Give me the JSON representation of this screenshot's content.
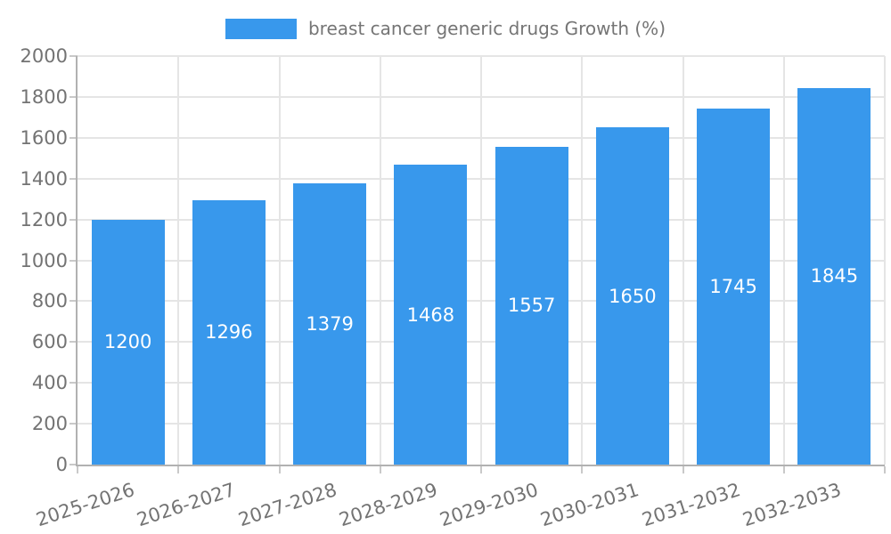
{
  "chart_data": {
    "type": "bar",
    "title": "breast cancer generic drugs Growth (%)",
    "legend": {
      "label": "breast cancer generic drugs Growth (%)",
      "position": "top"
    },
    "categories": [
      "2025-2026",
      "2026-2027",
      "2027-2028",
      "2028-2029",
      "2029-2030",
      "2030-2031",
      "2031-2032",
      "2032-2033"
    ],
    "values": [
      1200,
      1296,
      1379,
      1468,
      1557,
      1650,
      1745,
      1845
    ],
    "value_labels": [
      "1200",
      "1296",
      "1379",
      "1468",
      "1557",
      "1650",
      "1745",
      "1845"
    ],
    "xlabel": "",
    "ylabel": "",
    "ylim": [
      0,
      2000
    ],
    "yticks": [
      0,
      200,
      400,
      600,
      800,
      1000,
      1200,
      1400,
      1600,
      1800,
      2000
    ],
    "grid": true,
    "colors": {
      "bar": "#3898ec",
      "value_label": "#ffffff",
      "gridline": "#e5e5e5",
      "axis_line": "#b1b1b1",
      "tick": "#c9c9c9",
      "axis_text": "#737373",
      "legend_text": "#757575",
      "background": "#ffffff"
    }
  }
}
